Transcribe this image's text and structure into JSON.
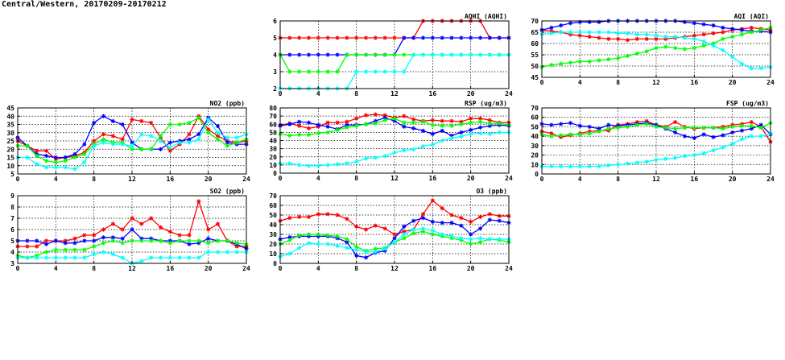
{
  "page": {
    "title": "Central/Western, 20170209-20170212"
  },
  "colors": {
    "red": "#ff0000",
    "blue": "#0000ff",
    "green": "#00ff00",
    "cyan": "#00ffff",
    "grid": "#000000"
  },
  "chart_data": [
    {
      "id": "aqhi",
      "type": "line",
      "title": "AQHI (AQHI)",
      "xlim": [
        0,
        24
      ],
      "ylim": [
        2,
        6
      ],
      "xticks": [
        0,
        4,
        8,
        12,
        16,
        20,
        24
      ],
      "yticks": [
        2,
        3,
        4,
        5,
        6
      ],
      "x": [
        0,
        1,
        2,
        3,
        4,
        5,
        6,
        7,
        8,
        9,
        10,
        11,
        12,
        13,
        14,
        15,
        16,
        17,
        18,
        19,
        20,
        21,
        22,
        23,
        24
      ],
      "series": [
        {
          "color": "red",
          "values": [
            5,
            5,
            5,
            5,
            5,
            5,
            5,
            5,
            5,
            5,
            5,
            5,
            5,
            5,
            5,
            6,
            6,
            6,
            6,
            6,
            6,
            6,
            5,
            5,
            5
          ]
        },
        {
          "color": "blue",
          "values": [
            4,
            4,
            4,
            4,
            4,
            4,
            4,
            4,
            4,
            4,
            4,
            4,
            4,
            5,
            5,
            5,
            5,
            5,
            5,
            5,
            5,
            5,
            5,
            5,
            5
          ]
        },
        {
          "color": "green",
          "values": [
            4,
            3,
            3,
            3,
            3,
            3,
            3,
            4,
            4,
            4,
            4,
            4,
            4,
            4,
            4,
            4,
            4,
            4,
            4,
            4,
            4,
            4,
            4,
            4,
            4
          ]
        },
        {
          "color": "cyan",
          "values": [
            2,
            2,
            2,
            2,
            2,
            2,
            2,
            2,
            3,
            3,
            3,
            3,
            3,
            3,
            4,
            4,
            4,
            4,
            4,
            4,
            4,
            4,
            4,
            4,
            4
          ]
        }
      ]
    },
    {
      "id": "aqi",
      "type": "line",
      "title": "AQI (AQI)",
      "xlim": [
        0,
        24
      ],
      "ylim": [
        45,
        70
      ],
      "xticks": [
        0,
        4,
        8,
        12,
        16,
        20,
        24
      ],
      "yticks": [
        45,
        50,
        55,
        60,
        65,
        70
      ],
      "x": [
        0,
        1,
        2,
        3,
        4,
        5,
        6,
        7,
        8,
        9,
        10,
        11,
        12,
        13,
        14,
        15,
        16,
        17,
        18,
        19,
        20,
        21,
        22,
        23,
        24
      ],
      "series": [
        {
          "color": "red",
          "values": [
            66,
            65.5,
            65,
            64,
            63.5,
            63,
            62.5,
            62,
            62,
            61.5,
            62,
            62,
            62,
            62,
            62.5,
            63,
            63.5,
            64,
            64.5,
            65,
            66,
            66.5,
            67,
            66.5,
            66
          ]
        },
        {
          "color": "blue",
          "values": [
            66,
            67,
            68,
            69,
            69.5,
            69.5,
            69.5,
            70,
            70,
            70,
            70,
            70,
            70,
            70,
            70,
            69.5,
            69,
            68.5,
            68,
            67,
            66.5,
            66,
            65.5,
            65.5,
            65
          ]
        },
        {
          "color": "green",
          "values": [
            49.5,
            50.5,
            51,
            51.5,
            52,
            52,
            52.5,
            53,
            53.5,
            54.5,
            55.5,
            56.5,
            58,
            58.5,
            58,
            57.5,
            58,
            59,
            60,
            62,
            63,
            64,
            65,
            66,
            67
          ]
        },
        {
          "color": "cyan",
          "values": [
            64,
            64.5,
            65,
            65,
            65,
            65,
            65,
            65,
            64.5,
            64.5,
            64,
            64,
            63.5,
            63,
            63,
            62.5,
            62,
            61,
            59,
            57,
            54,
            51,
            49,
            49,
            49.5
          ]
        }
      ]
    },
    {
      "id": "no2",
      "type": "line",
      "title": "NO2 (ppb)",
      "xlim": [
        0,
        24
      ],
      "ylim": [
        5,
        45
      ],
      "xticks": [
        0,
        4,
        8,
        12,
        16,
        20,
        24
      ],
      "yticks": [
        5,
        10,
        15,
        20,
        25,
        30,
        35,
        40,
        45
      ],
      "x": [
        0,
        1,
        2,
        3,
        4,
        5,
        6,
        7,
        8,
        9,
        10,
        11,
        12,
        13,
        14,
        15,
        16,
        17,
        18,
        19,
        20,
        21,
        22,
        23,
        24
      ],
      "series": [
        {
          "color": "red",
          "values": [
            25,
            22,
            19,
            19,
            14,
            15,
            16,
            18,
            25,
            29,
            28,
            26,
            38,
            37,
            36,
            27,
            19,
            23,
            29,
            40,
            32,
            28,
            25,
            24,
            25
          ]
        },
        {
          "color": "blue",
          "values": [
            27,
            22,
            17,
            16,
            15,
            15,
            17,
            23,
            36,
            40,
            37,
            35,
            24,
            20,
            20,
            20,
            24,
            25,
            26,
            29,
            39,
            34,
            24,
            23,
            23
          ]
        },
        {
          "color": "green",
          "values": [
            22,
            22,
            16,
            13,
            12,
            13,
            15,
            17,
            23,
            26,
            24,
            24,
            20,
            20,
            20,
            28,
            35,
            35,
            36,
            39,
            30,
            26,
            22,
            24,
            26
          ]
        },
        {
          "color": "cyan",
          "values": [
            15,
            15,
            11,
            9,
            9,
            9,
            8,
            12,
            22,
            24,
            23,
            23,
            22,
            29,
            28,
            25,
            21,
            24,
            24,
            26,
            38,
            30,
            27,
            27,
            29
          ]
        }
      ]
    },
    {
      "id": "rsp",
      "type": "line",
      "title": "RSP (ug/m3)",
      "xlim": [
        0,
        24
      ],
      "ylim": [
        0,
        80
      ],
      "xticks": [
        0,
        4,
        8,
        12,
        16,
        20,
        24
      ],
      "yticks": [
        0,
        10,
        20,
        30,
        40,
        50,
        60,
        70,
        80
      ],
      "x": [
        0,
        1,
        2,
        3,
        4,
        5,
        6,
        7,
        8,
        9,
        10,
        11,
        12,
        13,
        14,
        15,
        16,
        17,
        18,
        19,
        20,
        21,
        22,
        23,
        24
      ],
      "series": [
        {
          "color": "red",
          "values": [
            59,
            61,
            58,
            55,
            57,
            62,
            62,
            63,
            67,
            71,
            72,
            71,
            68,
            70,
            66,
            64,
            65,
            64,
            64,
            63,
            67,
            67,
            65,
            62,
            62
          ]
        },
        {
          "color": "blue",
          "values": [
            58,
            60,
            63,
            62,
            59,
            57,
            54,
            59,
            59,
            60,
            64,
            68,
            64,
            57,
            55,
            52,
            48,
            52,
            46,
            50,
            53,
            56,
            58,
            59,
            58
          ]
        },
        {
          "color": "green",
          "values": [
            48,
            46,
            47,
            47,
            49,
            50,
            53,
            56,
            58,
            60,
            61,
            65,
            67,
            62,
            62,
            63,
            59,
            58,
            58,
            60,
            62,
            63,
            61,
            61,
            59
          ]
        },
        {
          "color": "cyan",
          "values": [
            12,
            12,
            10,
            9,
            9,
            10,
            11,
            12,
            14,
            18,
            19,
            21,
            25,
            28,
            29,
            33,
            35,
            40,
            43,
            45,
            48,
            49,
            48,
            50,
            50
          ]
        }
      ]
    },
    {
      "id": "fsp",
      "type": "line",
      "title": "FSP (ug/m3)",
      "xlim": [
        0,
        24
      ],
      "ylim": [
        0,
        70
      ],
      "xticks": [
        0,
        4,
        8,
        12,
        16,
        20,
        24
      ],
      "yticks": [
        0,
        10,
        20,
        30,
        40,
        50,
        60,
        70
      ],
      "x": [
        0,
        1,
        2,
        3,
        4,
        5,
        6,
        7,
        8,
        9,
        10,
        11,
        12,
        13,
        14,
        15,
        16,
        17,
        18,
        19,
        20,
        21,
        22,
        23,
        24
      ],
      "series": [
        {
          "color": "red",
          "values": [
            45,
            43,
            39,
            41,
            43,
            45,
            46,
            46,
            52,
            53,
            55,
            56,
            52,
            50,
            55,
            50,
            48,
            49,
            49,
            50,
            52,
            53,
            55,
            50,
            34
          ]
        },
        {
          "color": "blue",
          "values": [
            53,
            52,
            53,
            54,
            51,
            50,
            48,
            52,
            51,
            52,
            53,
            54,
            52,
            48,
            44,
            40,
            38,
            42,
            39,
            41,
            44,
            46,
            48,
            52,
            42
          ]
        },
        {
          "color": "green",
          "values": [
            42,
            40,
            41,
            42,
            42,
            43,
            45,
            48,
            49,
            50,
            52,
            53,
            50,
            49,
            48,
            49,
            49,
            49,
            49,
            48,
            50,
            51,
            51,
            49,
            54
          ]
        },
        {
          "color": "cyan",
          "values": [
            8,
            8,
            8,
            8,
            8,
            8,
            8,
            9,
            10,
            11,
            12,
            13,
            15,
            16,
            17,
            19,
            20,
            22,
            25,
            28,
            32,
            37,
            40,
            40,
            43
          ]
        }
      ]
    },
    {
      "id": "so2",
      "type": "line",
      "title": "SO2 (ppb)",
      "xlim": [
        0,
        24
      ],
      "ylim": [
        3,
        9
      ],
      "xticks": [
        0,
        4,
        8,
        12,
        16,
        20,
        24
      ],
      "yticks": [
        3,
        4,
        5,
        6,
        7,
        8,
        9
      ],
      "x": [
        0,
        1,
        2,
        3,
        4,
        5,
        6,
        7,
        8,
        9,
        10,
        11,
        12,
        13,
        14,
        15,
        16,
        17,
        18,
        19,
        20,
        21,
        22,
        23,
        24
      ],
      "series": [
        {
          "color": "red",
          "values": [
            4.5,
            4.5,
            4.5,
            5,
            5,
            5,
            5.2,
            5.5,
            5.5,
            6,
            6.5,
            6,
            7,
            6.5,
            7,
            6.2,
            5.8,
            5.5,
            5.5,
            8.5,
            6,
            6.5,
            5,
            4.5,
            4.5
          ]
        },
        {
          "color": "blue",
          "values": [
            5,
            5,
            5,
            4.7,
            5,
            4.8,
            4.8,
            5,
            5,
            5.3,
            5.3,
            5.2,
            6,
            5.2,
            5.2,
            5,
            5,
            5,
            4.7,
            4.8,
            5.2,
            5,
            5,
            4.7,
            4.3
          ]
        },
        {
          "color": "green",
          "values": [
            3.7,
            3.5,
            3.7,
            4,
            4.2,
            4.2,
            4.2,
            4.2,
            4.5,
            4.8,
            5,
            4.8,
            5,
            5,
            5,
            5,
            4.8,
            5,
            5,
            5,
            4.8,
            5,
            5,
            4.8,
            4.7
          ]
        },
        {
          "color": "cyan",
          "values": [
            3.5,
            3.5,
            3.5,
            3.5,
            3.5,
            3.5,
            3.5,
            3.5,
            3.8,
            4,
            3.8,
            3.5,
            3,
            3.2,
            3.5,
            3.5,
            3.5,
            3.5,
            3.5,
            3.5,
            4,
            4,
            4,
            4,
            4
          ]
        }
      ]
    },
    {
      "id": "o3",
      "type": "line",
      "title": "O3 (ppb)",
      "xlim": [
        0,
        24
      ],
      "ylim": [
        0,
        70
      ],
      "xticks": [
        0,
        4,
        8,
        12,
        16,
        20,
        24
      ],
      "yticks": [
        0,
        10,
        20,
        30,
        40,
        50,
        60,
        70
      ],
      "x": [
        0,
        1,
        2,
        3,
        4,
        5,
        6,
        7,
        8,
        9,
        10,
        11,
        12,
        13,
        14,
        15,
        16,
        17,
        18,
        19,
        20,
        21,
        22,
        23,
        24
      ],
      "series": [
        {
          "color": "red",
          "values": [
            44,
            47,
            48,
            48,
            51,
            51,
            50,
            46,
            38,
            35,
            39,
            36,
            30,
            33,
            35,
            51,
            65,
            57,
            50,
            47,
            43,
            48,
            51,
            49,
            49
          ]
        },
        {
          "color": "blue",
          "values": [
            25,
            27,
            28,
            28,
            28,
            28,
            26,
            22,
            8,
            6,
            11,
            13,
            26,
            38,
            44,
            47,
            43,
            42,
            42,
            39,
            30,
            36,
            45,
            44,
            42
          ]
        },
        {
          "color": "green",
          "values": [
            20,
            24,
            29,
            30,
            30,
            29,
            28,
            25,
            17,
            13,
            15,
            16,
            22,
            26,
            31,
            33,
            30,
            28,
            26,
            24,
            20,
            22,
            25,
            24,
            22
          ]
        },
        {
          "color": "cyan",
          "values": [
            7,
            10,
            16,
            21,
            20,
            20,
            18,
            16,
            14,
            12,
            12,
            15,
            22,
            30,
            35,
            36,
            34,
            30,
            28,
            26,
            25,
            26,
            25,
            25,
            25
          ]
        }
      ]
    }
  ]
}
